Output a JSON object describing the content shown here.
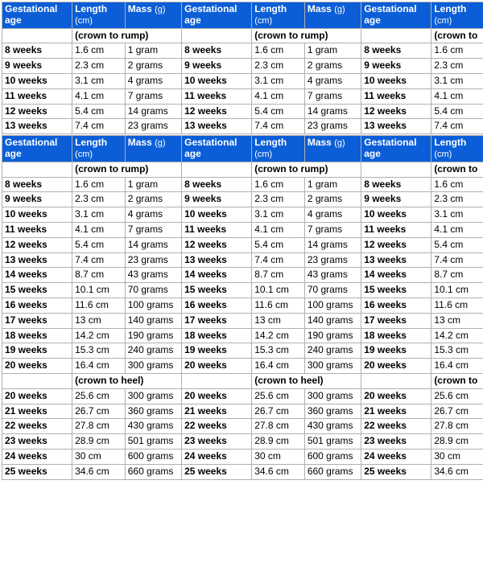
{
  "headers": {
    "ga": "Gestational age",
    "length": "Length",
    "length_unit": "(cm)",
    "mass": "Mass",
    "mass_unit": "(g)"
  },
  "section_labels": {
    "ctr": "(crown to rump)",
    "cth": "(crown to heel)",
    "ct": "(crown to"
  },
  "table1_rows": [
    {
      "ga": "8 weeks",
      "len": "1.6 cm",
      "mass": "1 gram"
    },
    {
      "ga": "9 weeks",
      "len": "2.3 cm",
      "mass": "2 grams"
    },
    {
      "ga": "10 weeks",
      "len": "3.1 cm",
      "mass": "4 grams"
    },
    {
      "ga": "11 weeks",
      "len": "4.1 cm",
      "mass": "7 grams"
    },
    {
      "ga": "12 weeks",
      "len": "5.4 cm",
      "mass": "14 grams"
    },
    {
      "ga": "13 weeks",
      "len": "7.4 cm",
      "mass": "23 grams"
    }
  ],
  "table2_rows_a": [
    {
      "ga": "8 weeks",
      "len": "1.6 cm",
      "mass": "1 gram"
    },
    {
      "ga": "9 weeks",
      "len": "2.3 cm",
      "mass": "2 grams"
    },
    {
      "ga": "10 weeks",
      "len": "3.1 cm",
      "mass": "4 grams"
    },
    {
      "ga": "11 weeks",
      "len": "4.1 cm",
      "mass": "7 grams"
    },
    {
      "ga": "12 weeks",
      "len": "5.4 cm",
      "mass": "14 grams"
    },
    {
      "ga": "13 weeks",
      "len": "7.4 cm",
      "mass": "23 grams"
    },
    {
      "ga": "14 weeks",
      "len": "8.7 cm",
      "mass": "43 grams"
    },
    {
      "ga": "15 weeks",
      "len": "10.1 cm",
      "mass": "70 grams"
    },
    {
      "ga": "16 weeks",
      "len": "11.6 cm",
      "mass": "100 grams"
    },
    {
      "ga": "17 weeks",
      "len": "13 cm",
      "mass": "140 grams"
    },
    {
      "ga": "18 weeks",
      "len": "14.2 cm",
      "mass": "190 grams"
    },
    {
      "ga": "19 weeks",
      "len": "15.3 cm",
      "mass": "240 grams"
    },
    {
      "ga": "20 weeks",
      "len": "16.4 cm",
      "mass": "300 grams"
    }
  ],
  "table2_rows_b": [
    {
      "ga": "20 weeks",
      "len": "25.6 cm",
      "mass": "300 grams"
    },
    {
      "ga": "21 weeks",
      "len": "26.7 cm",
      "mass": "360 grams"
    },
    {
      "ga": "22 weeks",
      "len": "27.8 cm",
      "mass": "430 grams"
    },
    {
      "ga": "23 weeks",
      "len": "28.9 cm",
      "mass": "501 grams"
    },
    {
      "ga": "24 weeks",
      "len": "30 cm",
      "mass": "600 grams"
    },
    {
      "ga": "25 weeks",
      "len": "34.6 cm",
      "mass": "660 grams"
    }
  ],
  "colors": {
    "header_bg": "#0b5ed7",
    "header_fg": "#ffffff",
    "border": "#b0b0b0",
    "bg": "#ffffff",
    "fg": "#000000"
  }
}
